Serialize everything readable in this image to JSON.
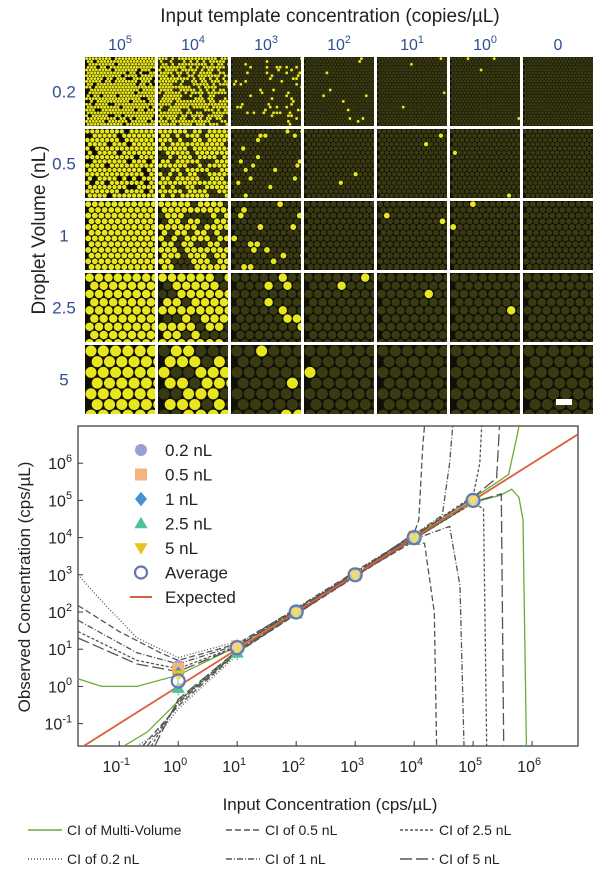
{
  "figure": {
    "panel_a": {
      "title": "Input template concentration (copies/µL)",
      "ylabel": "Droplet Volume (nL)",
      "columns": [
        {
          "base": "10",
          "exp": "5"
        },
        {
          "base": "10",
          "exp": "4"
        },
        {
          "base": "10",
          "exp": "3"
        },
        {
          "base": "10",
          "exp": "2"
        },
        {
          "base": "10",
          "exp": "1"
        },
        {
          "base": "10",
          "exp": "0"
        },
        {
          "base": "0",
          "exp": ""
        }
      ],
      "rows": [
        "0.2",
        "0.5",
        "1",
        "2.5",
        "5"
      ],
      "colors": {
        "droplet_bright": "#e8e61c",
        "droplet_dim": "#3a3a12",
        "background": "#101008",
        "label": "#2f4f8f"
      }
    }
  },
  "chart_data": {
    "type": "scatter",
    "xlabel": "Input Concentration (cps/µL)",
    "ylabel": "Observed Concentration (cps/µL)",
    "x_scale": "log",
    "y_scale": "log",
    "xlim": [
      0.02,
      6000000
    ],
    "ylim": [
      0.025,
      10000000
    ],
    "x_ticks": [
      {
        "v": 0.1,
        "base": "10",
        "exp": "-1"
      },
      {
        "v": 1,
        "base": "10",
        "exp": "0"
      },
      {
        "v": 10,
        "base": "10",
        "exp": "1"
      },
      {
        "v": 100,
        "base": "10",
        "exp": "2"
      },
      {
        "v": 1000,
        "base": "10",
        "exp": "3"
      },
      {
        "v": 10000,
        "base": "10",
        "exp": "4"
      },
      {
        "v": 100000,
        "base": "10",
        "exp": "5"
      },
      {
        "v": 1000000,
        "base": "10",
        "exp": "6"
      }
    ],
    "y_ticks": [
      {
        "v": 0.1,
        "base": "10",
        "exp": "-1"
      },
      {
        "v": 1,
        "base": "10",
        "exp": "0"
      },
      {
        "v": 10,
        "base": "10",
        "exp": "1"
      },
      {
        "v": 100,
        "base": "10",
        "exp": "2"
      },
      {
        "v": 1000,
        "base": "10",
        "exp": "3"
      },
      {
        "v": 10000,
        "base": "10",
        "exp": "4"
      },
      {
        "v": 100000,
        "base": "10",
        "exp": "5"
      },
      {
        "v": 1000000,
        "base": "10",
        "exp": "6"
      }
    ],
    "series": [
      {
        "name": "0.2 nL",
        "marker": "circle",
        "color": "#9aa0d4",
        "points": [
          [
            1,
            3.5
          ],
          [
            10,
            11
          ],
          [
            100,
            100
          ],
          [
            1000,
            1000
          ],
          [
            10000,
            10000
          ],
          [
            100000,
            100000
          ]
        ]
      },
      {
        "name": "0.5 nL",
        "marker": "square",
        "color": "#f4b47c",
        "points": [
          [
            1,
            3.0
          ],
          [
            10,
            12
          ],
          [
            100,
            98
          ],
          [
            1000,
            1000
          ],
          [
            10000,
            10500
          ],
          [
            100000,
            95000
          ]
        ]
      },
      {
        "name": "1 nL",
        "marker": "diamond",
        "color": "#4a90d0",
        "points": [
          [
            1,
            2.2
          ],
          [
            10,
            9
          ],
          [
            100,
            105
          ],
          [
            1000,
            990
          ],
          [
            10000,
            9800
          ],
          [
            100000,
            100000
          ]
        ]
      },
      {
        "name": "2.5 nL",
        "marker": "triangle-up",
        "color": "#4fc0a0",
        "points": [
          [
            1,
            0.9
          ],
          [
            10,
            8
          ],
          [
            100,
            90
          ],
          [
            1000,
            1000
          ],
          [
            10000,
            8500
          ],
          [
            100000,
            105000
          ]
        ]
      },
      {
        "name": "5 nL",
        "marker": "triangle-down",
        "color": "#e8c21a",
        "points": [
          [
            1,
            2.0
          ],
          [
            10,
            10
          ],
          [
            100,
            95
          ],
          [
            1000,
            950
          ],
          [
            10000,
            9500
          ],
          [
            100000,
            98000
          ]
        ]
      },
      {
        "name": "Average",
        "marker": "open-circle",
        "color": "#6677aa",
        "points": [
          [
            1,
            1.4
          ],
          [
            10,
            11
          ],
          [
            100,
            100
          ],
          [
            1000,
            1000
          ],
          [
            10000,
            10000
          ],
          [
            100000,
            100000
          ]
        ]
      }
    ],
    "expected": {
      "name": "Expected",
      "color": "#d9603a"
    },
    "ci_legend": [
      {
        "name": "CI of Multi-Volume",
        "color": "#6aaa3a",
        "dash": ""
      },
      {
        "name": "CI of 0.5 nL",
        "color": "#555555",
        "dash": "6 3"
      },
      {
        "name": "CI of 2.5 nL",
        "color": "#555555",
        "dash": "3 2"
      },
      {
        "name": "CI of 0.2 nL",
        "color": "#555555",
        "dash": "1 2"
      },
      {
        "name": "CI of 1 nL",
        "color": "#555555",
        "dash": "6 2 1 2"
      },
      {
        "name": "CI of 5 nL",
        "color": "#555555",
        "dash": "12 4"
      }
    ],
    "ci_bounds": [
      {
        "name": "CI of Multi-Volume",
        "upper": [
          [
            0.02,
            1.6
          ],
          [
            0.05,
            1.0
          ],
          [
            0.2,
            1.0
          ],
          [
            1,
            2.0
          ],
          [
            10,
            12
          ],
          [
            100,
            105
          ],
          [
            1000,
            1000
          ],
          [
            10000,
            11000
          ],
          [
            100000,
            115000
          ],
          [
            250000,
            300000
          ],
          [
            400000,
            500000
          ],
          [
            550000,
            5000000
          ],
          [
            600000,
            10000000
          ]
        ],
        "lower": [
          [
            0.12,
            0.025
          ],
          [
            0.3,
            0.06
          ],
          [
            1,
            0.4
          ],
          [
            10,
            8
          ],
          [
            100,
            95
          ],
          [
            1000,
            980
          ],
          [
            10000,
            9000
          ],
          [
            100000,
            88000
          ],
          [
            300000,
            140000
          ],
          [
            450000,
            200000
          ],
          [
            600000,
            120000
          ],
          [
            700000,
            30000
          ],
          [
            800000,
            0.025
          ]
        ]
      },
      {
        "name": "CI of 0.2 nL",
        "upper": [
          [
            0.02,
            1000
          ],
          [
            0.05,
            200
          ],
          [
            0.2,
            20
          ],
          [
            1,
            6
          ],
          [
            10,
            16
          ]
        ],
        "lower": [
          [
            0.2,
            0.025
          ],
          [
            0.5,
            0.06
          ],
          [
            1,
            0.25
          ],
          [
            10,
            7
          ]
        ]
      },
      {
        "name": "CI of 0.5 nL",
        "upper": [
          [
            0.02,
            150
          ],
          [
            0.1,
            30
          ],
          [
            0.5,
            8
          ],
          [
            1,
            5
          ],
          [
            10,
            14
          ],
          [
            1000,
            1050
          ],
          [
            10000,
            13000
          ],
          [
            12000,
            30000
          ],
          [
            14000,
            3000000
          ],
          [
            15000,
            10000000
          ]
        ],
        "lower": [
          [
            0.25,
            0.025
          ],
          [
            1,
            0.3
          ],
          [
            10,
            8
          ],
          [
            1000,
            950
          ],
          [
            10000,
            8000
          ],
          [
            15000,
            7000
          ],
          [
            22000,
            100
          ],
          [
            24000,
            0.025
          ]
        ]
      },
      {
        "name": "CI of 1 nL",
        "upper": [
          [
            0.02,
            60
          ],
          [
            0.2,
            8
          ],
          [
            1,
            4
          ],
          [
            10,
            13
          ],
          [
            10000,
            12000
          ],
          [
            30000,
            40000
          ],
          [
            40000,
            1000000
          ],
          [
            45000,
            10000000
          ]
        ],
        "lower": [
          [
            0.3,
            0.025
          ],
          [
            1,
            0.35
          ],
          [
            10,
            8.5
          ],
          [
            10000,
            9000
          ],
          [
            40000,
            20000
          ],
          [
            60000,
            500
          ],
          [
            70000,
            0.025
          ]
        ]
      },
      {
        "name": "CI of 2.5 nL",
        "upper": [
          [
            0.02,
            30
          ],
          [
            0.2,
            5
          ],
          [
            1,
            3
          ],
          [
            10,
            12
          ],
          [
            10000,
            11500
          ],
          [
            100000,
            130000
          ],
          [
            130000,
            1000000
          ],
          [
            140000,
            10000000
          ]
        ],
        "lower": [
          [
            0.35,
            0.025
          ],
          [
            1,
            0.4
          ],
          [
            10,
            9
          ],
          [
            10000,
            9200
          ],
          [
            100000,
            85000
          ],
          [
            150000,
            60000
          ],
          [
            170000,
            0.025
          ]
        ]
      },
      {
        "name": "CI of 5 nL",
        "upper": [
          [
            0.02,
            20
          ],
          [
            0.2,
            4
          ],
          [
            1,
            2.5
          ],
          [
            10,
            11.5
          ],
          [
            10000,
            11000
          ],
          [
            100000,
            120000
          ],
          [
            250000,
            400000
          ],
          [
            280000,
            10000000
          ]
        ],
        "lower": [
          [
            0.4,
            0.025
          ],
          [
            1,
            0.45
          ],
          [
            10,
            9.2
          ],
          [
            10000,
            9400
          ],
          [
            100000,
            90000
          ],
          [
            300000,
            150000
          ],
          [
            330000,
            0.025
          ]
        ]
      }
    ]
  }
}
